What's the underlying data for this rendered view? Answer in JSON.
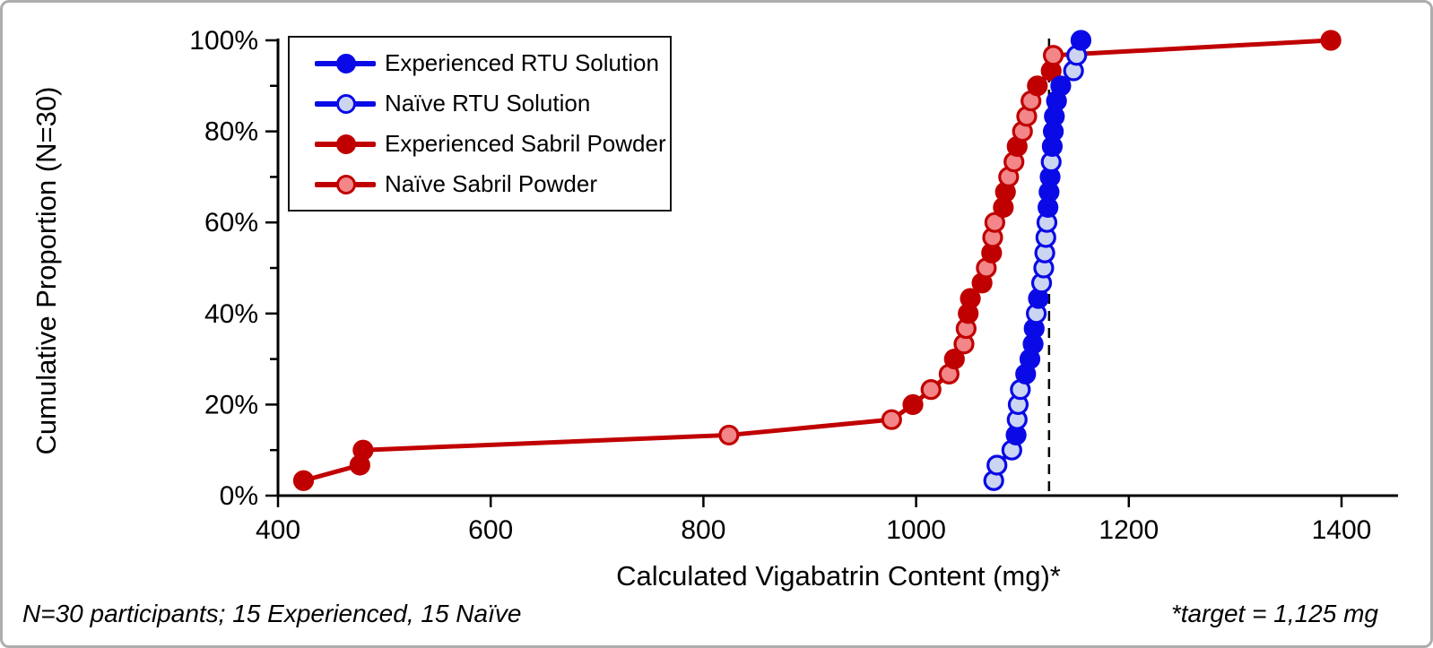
{
  "chart_data": {
    "type": "line",
    "title": "",
    "xlabel": "Calculated Vigabatrin Content (mg)*",
    "ylabel": "Cumulative Proportion (N=30)",
    "xlim": [
      400,
      1450
    ],
    "ylim_pct": [
      0,
      100
    ],
    "x_ticks": [
      400,
      600,
      800,
      1000,
      1200,
      1400
    ],
    "y_ticks_pct": [
      0,
      20,
      40,
      60,
      80,
      100
    ],
    "y_minor_ticks_pct": [
      10,
      30,
      50,
      70,
      90
    ],
    "y_tick_suffix": "%",
    "grid": false,
    "legend_position": "top-left",
    "target_line": {
      "x_mg": 1125,
      "style": "dashed",
      "color": "#000000"
    },
    "styles": {
      "rtu": {
        "line": "#0a0ae6",
        "experienced_fill": "#0a0ae6",
        "naive_fill": "#cbd5f2",
        "edge": "#0a0ae6"
      },
      "sabril": {
        "line": "#c00000",
        "experienced_fill": "#c00000",
        "naive_fill": "#f28689",
        "edge": "#c00000"
      }
    },
    "lines": [
      {
        "name": "Sabril Powder",
        "style_key": "sabril",
        "points": [
          {
            "mg": 424,
            "cum_pct": 3.3,
            "group": "experienced"
          },
          {
            "mg": 477,
            "cum_pct": 6.7,
            "group": "experienced"
          },
          {
            "mg": 480,
            "cum_pct": 10,
            "group": "experienced"
          },
          {
            "mg": 824,
            "cum_pct": 13.3,
            "group": "naive"
          },
          {
            "mg": 977,
            "cum_pct": 16.7,
            "group": "naive"
          },
          {
            "mg": 997,
            "cum_pct": 20,
            "group": "experienced"
          },
          {
            "mg": 1014,
            "cum_pct": 23.3,
            "group": "naive"
          },
          {
            "mg": 1031,
            "cum_pct": 26.7,
            "group": "naive"
          },
          {
            "mg": 1036,
            "cum_pct": 30,
            "group": "experienced"
          },
          {
            "mg": 1045,
            "cum_pct": 33.3,
            "group": "naive"
          },
          {
            "mg": 1047,
            "cum_pct": 36.7,
            "group": "naive"
          },
          {
            "mg": 1049,
            "cum_pct": 40,
            "group": "experienced"
          },
          {
            "mg": 1051,
            "cum_pct": 43.3,
            "group": "experienced"
          },
          {
            "mg": 1062,
            "cum_pct": 46.7,
            "group": "experienced"
          },
          {
            "mg": 1066,
            "cum_pct": 50,
            "group": "naive"
          },
          {
            "mg": 1071,
            "cum_pct": 53.3,
            "group": "experienced"
          },
          {
            "mg": 1072,
            "cum_pct": 56.7,
            "group": "naive"
          },
          {
            "mg": 1074,
            "cum_pct": 60,
            "group": "naive"
          },
          {
            "mg": 1082,
            "cum_pct": 63.3,
            "group": "experienced"
          },
          {
            "mg": 1084,
            "cum_pct": 66.7,
            "group": "experienced"
          },
          {
            "mg": 1087,
            "cum_pct": 70,
            "group": "naive"
          },
          {
            "mg": 1092,
            "cum_pct": 73.3,
            "group": "naive"
          },
          {
            "mg": 1095,
            "cum_pct": 76.7,
            "group": "experienced"
          },
          {
            "mg": 1100,
            "cum_pct": 80,
            "group": "naive"
          },
          {
            "mg": 1104,
            "cum_pct": 83.3,
            "group": "naive"
          },
          {
            "mg": 1108,
            "cum_pct": 86.7,
            "group": "naive"
          },
          {
            "mg": 1114,
            "cum_pct": 90,
            "group": "experienced"
          },
          {
            "mg": 1127,
            "cum_pct": 93.3,
            "group": "experienced"
          },
          {
            "mg": 1129,
            "cum_pct": 96.7,
            "group": "naive"
          },
          {
            "mg": 1390,
            "cum_pct": 100,
            "group": "experienced"
          }
        ]
      },
      {
        "name": "RTU Solution",
        "style_key": "rtu",
        "points": [
          {
            "mg": 1073,
            "cum_pct": 3.3,
            "group": "naive"
          },
          {
            "mg": 1076,
            "cum_pct": 6.7,
            "group": "naive"
          },
          {
            "mg": 1090,
            "cum_pct": 10,
            "group": "naive"
          },
          {
            "mg": 1094,
            "cum_pct": 13.3,
            "group": "experienced"
          },
          {
            "mg": 1095,
            "cum_pct": 16.7,
            "group": "naive"
          },
          {
            "mg": 1096,
            "cum_pct": 20,
            "group": "naive"
          },
          {
            "mg": 1098,
            "cum_pct": 23.3,
            "group": "naive"
          },
          {
            "mg": 1103,
            "cum_pct": 26.7,
            "group": "experienced"
          },
          {
            "mg": 1107,
            "cum_pct": 30,
            "group": "experienced"
          },
          {
            "mg": 1110,
            "cum_pct": 33.3,
            "group": "experienced"
          },
          {
            "mg": 1111,
            "cum_pct": 36.7,
            "group": "experienced"
          },
          {
            "mg": 1113,
            "cum_pct": 40,
            "group": "naive"
          },
          {
            "mg": 1115,
            "cum_pct": 43.3,
            "group": "experienced"
          },
          {
            "mg": 1118,
            "cum_pct": 46.7,
            "group": "naive"
          },
          {
            "mg": 1120,
            "cum_pct": 50,
            "group": "naive"
          },
          {
            "mg": 1121,
            "cum_pct": 53.3,
            "group": "naive"
          },
          {
            "mg": 1122,
            "cum_pct": 56.7,
            "group": "naive"
          },
          {
            "mg": 1123,
            "cum_pct": 60,
            "group": "naive"
          },
          {
            "mg": 1124,
            "cum_pct": 63.3,
            "group": "experienced"
          },
          {
            "mg": 1125,
            "cum_pct": 66.7,
            "group": "experienced"
          },
          {
            "mg": 1126,
            "cum_pct": 70,
            "group": "experienced"
          },
          {
            "mg": 1127,
            "cum_pct": 73.3,
            "group": "naive"
          },
          {
            "mg": 1128,
            "cum_pct": 76.7,
            "group": "experienced"
          },
          {
            "mg": 1129,
            "cum_pct": 80,
            "group": "experienced"
          },
          {
            "mg": 1130,
            "cum_pct": 83.3,
            "group": "experienced"
          },
          {
            "mg": 1132,
            "cum_pct": 86.7,
            "group": "experienced"
          },
          {
            "mg": 1136,
            "cum_pct": 90,
            "group": "experienced"
          },
          {
            "mg": 1148,
            "cum_pct": 93.3,
            "group": "naive"
          },
          {
            "mg": 1151,
            "cum_pct": 96.7,
            "group": "naive"
          },
          {
            "mg": 1155,
            "cum_pct": 100,
            "group": "experienced"
          }
        ]
      }
    ],
    "legend": {
      "items": [
        {
          "label": "Experienced RTU Solution",
          "line_color": "#0a0ae6",
          "marker_fill": "#0a0ae6",
          "marker_edge": "#0a0ae6"
        },
        {
          "label": "Naïve RTU Solution",
          "line_color": "#0a0ae6",
          "marker_fill": "#cbd5f2",
          "marker_edge": "#0a0ae6"
        },
        {
          "label": "Experienced Sabril Powder",
          "line_color": "#c00000",
          "marker_fill": "#c00000",
          "marker_edge": "#c00000"
        },
        {
          "label": "Naïve Sabril Powder",
          "line_color": "#c00000",
          "marker_fill": "#f28689",
          "marker_edge": "#c00000"
        }
      ]
    },
    "annotations": {
      "footnote_left": "N=30 participants; 15 Experienced, 15 Naïve",
      "footnote_right": "*target = 1,125 mg"
    }
  }
}
